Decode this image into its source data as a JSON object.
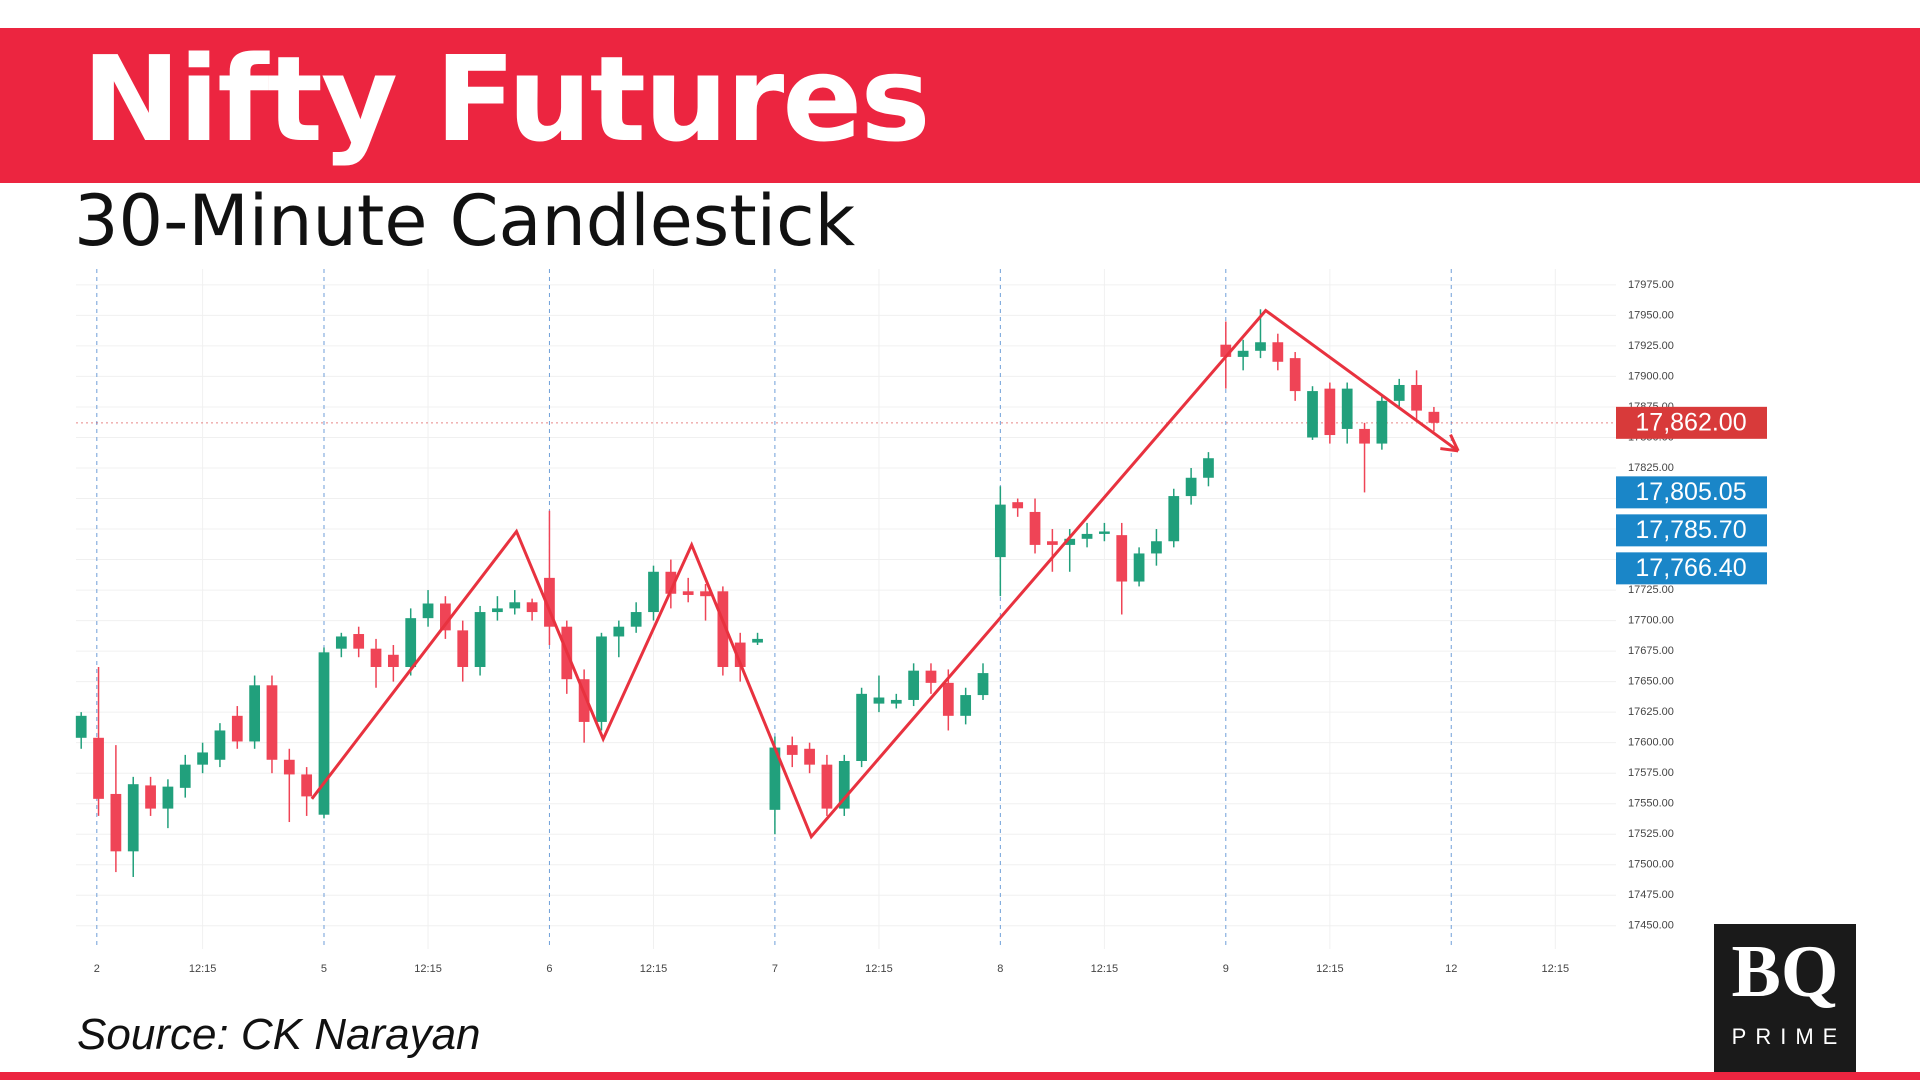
{
  "header": {
    "title": "Nifty Futures",
    "subtitle": "30-Minute Candlestick"
  },
  "chart_data": {
    "type": "candlestick",
    "open": [
      17604,
      17604,
      17558,
      17511,
      17565,
      17546,
      17563,
      17582,
      17586,
      17622,
      17601,
      17647,
      17586,
      17574,
      17541,
      17677,
      17689,
      17677,
      17672,
      17662,
      17702,
      17714,
      17692,
      17662,
      17707,
      17710,
      17715,
      17735,
      17695,
      17652,
      17617,
      17687,
      17695,
      17707,
      17740,
      17724,
      17724,
      17724,
      17682,
      17682,
      17545,
      17598,
      17595,
      17582,
      17546,
      17585,
      17632,
      17632,
      17635,
      17659,
      17649,
      17622,
      17639,
      17752,
      17797,
      17789,
      17765,
      17762,
      17767,
      17771,
      17770,
      17732,
      17755,
      17765,
      17802,
      17817,
      17926,
      17916,
      17921,
      17928,
      17915,
      17850,
      17890,
      17857,
      17857,
      17845,
      17880,
      17893,
      17871
    ],
    "high": [
      17625,
      17662,
      17598,
      17572,
      17572,
      17570,
      17590,
      17600,
      17616,
      17630,
      17655,
      17655,
      17595,
      17580,
      17678,
      17690,
      17695,
      17685,
      17680,
      17710,
      17725,
      17720,
      17700,
      17712,
      17720,
      17725,
      17718,
      17790,
      17700,
      17660,
      17690,
      17700,
      17715,
      17745,
      17750,
      17735,
      17730,
      17728,
      17690,
      17690,
      17605,
      17605,
      17600,
      17590,
      17590,
      17645,
      17655,
      17640,
      17665,
      17665,
      17660,
      17645,
      17665,
      17810,
      17800,
      17800,
      17775,
      17775,
      17780,
      17780,
      17780,
      17760,
      17775,
      17808,
      17825,
      17838,
      17945,
      17930,
      17955,
      17935,
      17920,
      17892,
      17895,
      17895,
      17862,
      17885,
      17898,
      17905,
      17875
    ],
    "low": [
      17595,
      17540,
      17494,
      17490,
      17540,
      17530,
      17555,
      17575,
      17580,
      17595,
      17595,
      17575,
      17535,
      17540,
      17538,
      17670,
      17670,
      17645,
      17650,
      17655,
      17695,
      17685,
      17650,
      17655,
      17700,
      17705,
      17700,
      17680,
      17640,
      17600,
      17610,
      17670,
      17690,
      17700,
      17710,
      17715,
      17700,
      17655,
      17650,
      17680,
      17525,
      17580,
      17575,
      17540,
      17540,
      17580,
      17625,
      17628,
      17630,
      17640,
      17610,
      17615,
      17635,
      17720,
      17785,
      17755,
      17740,
      17740,
      17760,
      17765,
      17705,
      17728,
      17745,
      17760,
      17795,
      17810,
      17890,
      17905,
      17915,
      17905,
      17880,
      17848,
      17845,
      17845,
      17805,
      17840,
      17875,
      17865,
      17855
    ],
    "close": [
      17622,
      17554,
      17511,
      17566,
      17546,
      17564,
      17582,
      17592,
      17610,
      17601,
      17647,
      17586,
      17574,
      17556,
      17674,
      17687,
      17677,
      17662,
      17662,
      17702,
      17714,
      17692,
      17662,
      17707,
      17710,
      17715,
      17707,
      17695,
      17652,
      17617,
      17687,
      17695,
      17707,
      17740,
      17722,
      17721,
      17720,
      17662,
      17662,
      17685,
      17596,
      17590,
      17582,
      17546,
      17585,
      17640,
      17637,
      17635,
      17659,
      17649,
      17622,
      17639,
      17657,
      17795,
      17792,
      17762,
      17762,
      17767,
      17771,
      17773,
      17732,
      17755,
      17765,
      17802,
      17817,
      17833,
      17916,
      17921,
      17928,
      17912,
      17888,
      17888,
      17852,
      17890,
      17845,
      17880,
      17893,
      17872,
      17862
    ],
    "up_color": "#21a07c",
    "down_color": "#ef4456",
    "xlim": [
      -0.3,
      88.5
    ],
    "xticks": [
      {
        "value": 0.9,
        "label": "2"
      },
      {
        "value": 7,
        "label": "12:15"
      },
      {
        "value": 14,
        "label": "5"
      },
      {
        "value": 20,
        "label": "12:15"
      },
      {
        "value": 27,
        "label": "6"
      },
      {
        "value": 33,
        "label": "12:15"
      },
      {
        "value": 40,
        "label": "7"
      },
      {
        "value": 46,
        "label": "12:15"
      },
      {
        "value": 53,
        "label": "8"
      },
      {
        "value": 59,
        "label": "12:15"
      },
      {
        "value": 66,
        "label": "9"
      },
      {
        "value": 72,
        "label": "12:15"
      },
      {
        "value": 79,
        "label": "12"
      },
      {
        "value": 85,
        "label": "12:15"
      }
    ],
    "ylim": [
      17431,
      17988
    ],
    "yticks": [
      {
        "value": 17450,
        "label": "17450.00"
      },
      {
        "value": 17475,
        "label": "17475.00"
      },
      {
        "value": 17500,
        "label": "17500.00"
      },
      {
        "value": 17525,
        "label": "17525.00"
      },
      {
        "value": 17550,
        "label": "17550.00"
      },
      {
        "value": 17575,
        "label": "17575.00"
      },
      {
        "value": 17600,
        "label": "17600.00"
      },
      {
        "value": 17625,
        "label": "17625.00"
      },
      {
        "value": 17650,
        "label": "17650.00"
      },
      {
        "value": 17675,
        "label": "17675.00"
      },
      {
        "value": 17700,
        "label": "17700.00"
      },
      {
        "value": 17725,
        "label": "17725.00"
      },
      {
        "value": 17750,
        "label": "17750.00"
      },
      {
        "value": 17775,
        "label": "17775.00"
      },
      {
        "value": 17800,
        "label": "17800.00"
      },
      {
        "value": 17825,
        "label": "17825.00"
      },
      {
        "value": 17850,
        "label": "17850.00"
      },
      {
        "value": 17875,
        "label": "17875.00"
      },
      {
        "value": 17900,
        "label": "17900.00"
      },
      {
        "value": 17925,
        "label": "17925.00"
      },
      {
        "value": 17950,
        "label": "17950.00"
      },
      {
        "value": 17975,
        "label": "17975.00"
      }
    ],
    "grid": true,
    "price_labels": [
      {
        "value": 17862,
        "label": "17,862.00",
        "color": "#d83a3a"
      },
      {
        "value": 17805.05,
        "label": "17,805.05",
        "color": "#1a86c8"
      },
      {
        "value": 17785.7,
        "label": "17,785.70",
        "color": "#1a86c8"
      },
      {
        "value": 17766.4,
        "label": "17,766.40",
        "color": "#1a86c8"
      }
    ],
    "trendline": {
      "color": "#e8323f",
      "points": [
        [
          13.3,
          17554
        ],
        [
          25.1,
          17773
        ],
        [
          30.1,
          17603
        ],
        [
          35.2,
          17762
        ],
        [
          42.1,
          17523
        ],
        [
          68.3,
          17954
        ],
        [
          79.4,
          17839
        ]
      ]
    }
  },
  "footer": {
    "source": "Source: CK Narayan",
    "logo": "BQ",
    "logo_sub": "PRIME"
  }
}
